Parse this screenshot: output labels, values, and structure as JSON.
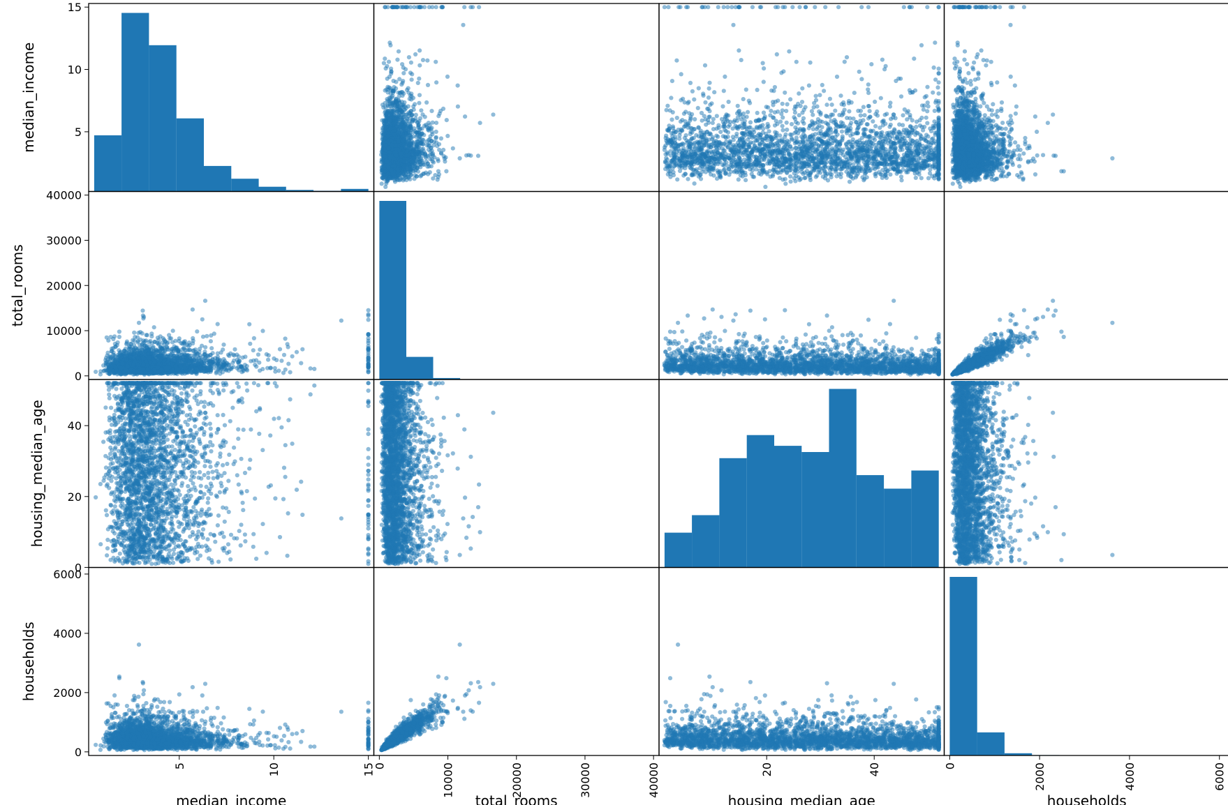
{
  "chart_data": {
    "type": "scatter-matrix",
    "variables": [
      "median_income",
      "total_rooms",
      "housing_median_age",
      "households"
    ],
    "axis_labels": {
      "left": [
        "median_income",
        "total_rooms",
        "housing_median_age",
        "households"
      ],
      "bottom": [
        "median_income",
        "total_rooms",
        "housing_median_age",
        "households"
      ]
    },
    "ranges": {
      "median_income": [
        0.5,
        15.0
      ],
      "total_rooms": [
        0,
        40000
      ],
      "housing_median_age": [
        1,
        52
      ],
      "households": [
        0,
        6100
      ]
    },
    "ticks": {
      "median_income": {
        "left": [
          "15",
          "10",
          "5"
        ],
        "bottom": [
          "5",
          "10",
          "15"
        ]
      },
      "total_rooms": {
        "left": [
          "40000",
          "30000",
          "20000",
          "10000",
          "0"
        ],
        "bottom": [
          "0",
          "10000",
          "20000",
          "30000",
          "40000"
        ]
      },
      "housing_median_age": {
        "left": [
          "40",
          "20",
          "0"
        ],
        "bottom": [
          "20",
          "40"
        ]
      },
      "households": {
        "left": [
          "6000",
          "4000",
          "2000",
          "0"
        ],
        "bottom": [
          "0",
          "2000",
          "4000",
          "6000"
        ]
      }
    },
    "histograms": [
      {
        "variable": "median_income",
        "bin_edges": [
          0.5,
          1.95,
          3.4,
          4.85,
          6.3,
          7.75,
          9.2,
          10.65,
          12.1,
          13.55,
          15.0
        ],
        "counts": [
          3300,
          10500,
          8600,
          4300,
          1500,
          750,
          280,
          90,
          40,
          150
        ]
      },
      {
        "variable": "total_rooms",
        "bin_edges": [
          0,
          3930,
          7860,
          11790,
          15720,
          19650,
          23580,
          27510,
          31440,
          35370,
          39300
        ],
        "counts": [
          18200,
          2300,
          150,
          30,
          10,
          5,
          3,
          2,
          1,
          1
        ]
      },
      {
        "variable": "housing_median_age",
        "bin_edges": [
          1,
          6.1,
          11.2,
          16.3,
          21.4,
          26.5,
          31.6,
          36.7,
          41.8,
          46.9,
          52
        ],
        "counts": [
          1130,
          1700,
          3550,
          4300,
          3950,
          3750,
          5800,
          3000,
          2560,
          3150
        ]
      },
      {
        "variable": "households",
        "bin_edges": [
          0,
          610,
          1220,
          1830,
          2440,
          3050,
          3660,
          4270,
          4880,
          5490,
          6100
        ],
        "counts": [
          18200,
          2350,
          230,
          40,
          10,
          5,
          3,
          2,
          1,
          1
        ]
      }
    ],
    "point_color": "#1f77b4",
    "point_alpha": 0.5,
    "hist_color": "#1f77b4"
  }
}
